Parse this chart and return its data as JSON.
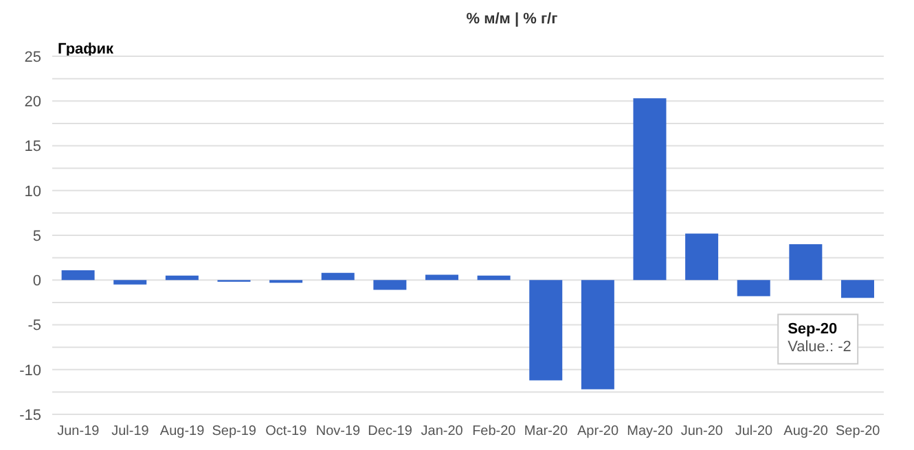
{
  "chart_data": {
    "type": "bar",
    "title": "График",
    "categories": [
      "Jun-19",
      "Jul-19",
      "Aug-19",
      "Sep-19",
      "Oct-19",
      "Nov-19",
      "Dec-19",
      "Jan-20",
      "Feb-20",
      "Mar-20",
      "Apr-20",
      "May-20",
      "Jun-20",
      "Jul-20",
      "Aug-20",
      "Sep-20"
    ],
    "values": [
      1.1,
      -0.5,
      0.5,
      -0.2,
      -0.3,
      0.8,
      -1.1,
      0.6,
      0.5,
      -11.2,
      -12.2,
      20.3,
      5.2,
      -1.8,
      4.0,
      -2
    ],
    "color": "#3366cc",
    "ylim": [
      -15,
      25
    ],
    "yticks": [
      -15,
      {
        "value": -12.5,
        "label": null
      },
      -10,
      {
        "value": -7.5,
        "label": null
      },
      -5,
      {
        "value": -2.5,
        "label": null
      },
      0,
      {
        "value": 2.5,
        "label": null
      },
      5,
      {
        "value": 7.5,
        "label": null
      },
      10,
      {
        "value": 12.5,
        "label": null
      },
      15,
      {
        "value": 17.5,
        "label": null
      },
      20,
      {
        "value": 22.5,
        "label": null
      },
      25
    ],
    "grid": "y",
    "legend": false,
    "annotations": [
      "% м/м | % г/г",
      {
        "text": "Sep-20\nValue.: -2",
        "x": "Sep-20",
        "y": -2
      }
    ]
  }
}
